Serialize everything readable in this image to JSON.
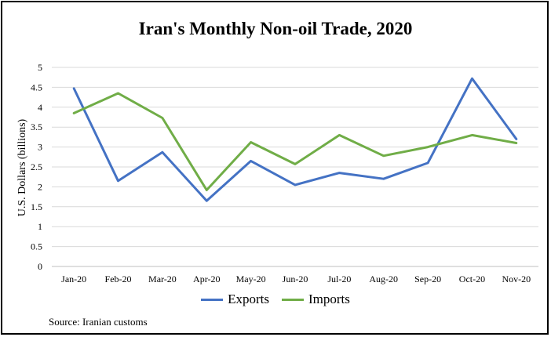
{
  "chart_data": {
    "type": "line",
    "title": "Iran's Monthly Non-oil Trade, 2020",
    "ylabel": "U.S. Dollars  (billions)",
    "xlabel": "",
    "categories": [
      "Jan-20",
      "Feb-20",
      "Mar-20",
      "Apr-20",
      "May-20",
      "Jun-20",
      "Jul-20",
      "Aug-20",
      "Sep-20",
      "Oct-20",
      "Nov-20"
    ],
    "ylim": [
      0,
      5
    ],
    "yticks": [
      "0",
      "0.5",
      "1",
      "1.5",
      "2",
      "2.5",
      "3",
      "3.5",
      "4",
      "4.5",
      "5"
    ],
    "grid": true,
    "legend": "bottom",
    "series": [
      {
        "name": "Exports",
        "color": "#4472C4",
        "values": [
          4.47,
          2.15,
          2.87,
          1.65,
          2.65,
          2.05,
          2.35,
          2.2,
          2.6,
          4.72,
          3.2
        ]
      },
      {
        "name": "Imports",
        "color": "#70AD47",
        "values": [
          3.85,
          4.35,
          3.73,
          1.92,
          3.12,
          2.57,
          3.3,
          2.78,
          3.0,
          3.3,
          3.1
        ]
      }
    ],
    "source": "Source: Iranian customs"
  }
}
